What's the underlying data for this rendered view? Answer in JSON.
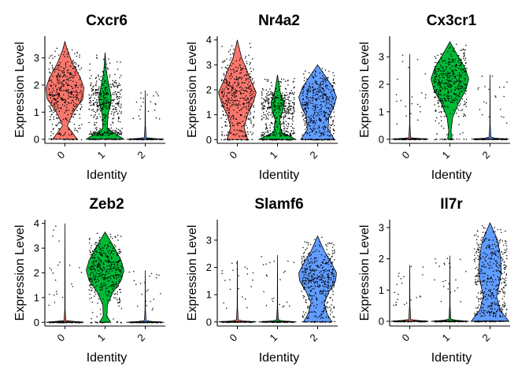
{
  "colors": {
    "0": "#F8766D",
    "1": "#00BA38",
    "2": "#619CFF",
    "axis": "#000000",
    "background": "#ffffff"
  },
  "chart_data": [
    {
      "type": "violin",
      "title": "Cxcr6",
      "xlabel": "Identity",
      "ylabel": "Expression Level",
      "categories": [
        "0",
        "1",
        "2"
      ],
      "ylim": [
        -0.15,
        3.8
      ],
      "yticks": [
        0,
        1,
        2,
        3
      ],
      "series": [
        {
          "category": "0",
          "max": 3.6,
          "median": 1.7,
          "shape": [
            [
              0,
              0.65
            ],
            [
              0.5,
              0.12
            ],
            [
              1.0,
              0.45
            ],
            [
              1.5,
              0.95
            ],
            [
              1.9,
              1.0
            ],
            [
              2.3,
              0.8
            ],
            [
              2.8,
              0.4
            ],
            [
              3.3,
              0.12
            ],
            [
              3.6,
              0.0
            ]
          ]
        },
        {
          "category": "1",
          "max": 3.2,
          "median": 1.5,
          "shape": [
            [
              0,
              1.0
            ],
            [
              0.4,
              0.12
            ],
            [
              0.9,
              0.15
            ],
            [
              1.3,
              0.3
            ],
            [
              1.6,
              0.32
            ],
            [
              2.0,
              0.2
            ],
            [
              2.5,
              0.07
            ],
            [
              3.2,
              0.0
            ]
          ]
        },
        {
          "category": "2",
          "max": 1.8,
          "median": 0,
          "shape": [
            [
              0,
              1.0
            ],
            [
              0.05,
              0.05
            ],
            [
              0.5,
              0.01
            ],
            [
              1.8,
              0.0
            ]
          ]
        }
      ]
    },
    {
      "type": "violin",
      "title": "Nr4a2",
      "xlabel": "Identity",
      "ylabel": "Expression Level",
      "categories": [
        "0",
        "1",
        "2"
      ],
      "ylim": [
        -0.15,
        4.15
      ],
      "yticks": [
        0,
        1,
        2,
        3,
        4
      ],
      "series": [
        {
          "category": "0",
          "max": 4.0,
          "median": 2.0,
          "shape": [
            [
              0,
              0.55
            ],
            [
              0.5,
              0.35
            ],
            [
              1.0,
              0.55
            ],
            [
              1.5,
              0.85
            ],
            [
              1.9,
              1.0
            ],
            [
              2.3,
              0.75
            ],
            [
              2.8,
              0.5
            ],
            [
              3.3,
              0.22
            ],
            [
              3.8,
              0.06
            ],
            [
              4.0,
              0.0
            ]
          ]
        },
        {
          "category": "1",
          "max": 2.6,
          "median": 1.4,
          "shape": [
            [
              0,
              1.0
            ],
            [
              0.3,
              0.2
            ],
            [
              0.8,
              0.12
            ],
            [
              1.2,
              0.3
            ],
            [
              1.5,
              0.35
            ],
            [
              1.9,
              0.15
            ],
            [
              2.6,
              0.0
            ]
          ]
        },
        {
          "category": "2",
          "max": 3.0,
          "median": 1.7,
          "shape": [
            [
              0,
              0.9
            ],
            [
              0.4,
              0.55
            ],
            [
              0.9,
              0.6
            ],
            [
              1.3,
              0.85
            ],
            [
              1.7,
              1.0
            ],
            [
              2.1,
              0.8
            ],
            [
              2.5,
              0.45
            ],
            [
              3.0,
              0.0
            ]
          ]
        }
      ]
    },
    {
      "type": "violin",
      "title": "Cx3cr1",
      "xlabel": "Identity",
      "ylabel": "Expression Level",
      "categories": [
        "0",
        "1",
        "2"
      ],
      "ylim": [
        -0.15,
        3.75
      ],
      "yticks": [
        0,
        1,
        2,
        3
      ],
      "series": [
        {
          "category": "0",
          "max": 3.1,
          "median": 0,
          "shape": [
            [
              0,
              1.0
            ],
            [
              0.05,
              0.05
            ],
            [
              0.5,
              0.01
            ],
            [
              3.1,
              0.0
            ]
          ]
        },
        {
          "category": "1",
          "max": 3.55,
          "median": 2.2,
          "shape": [
            [
              0,
              0.12
            ],
            [
              0.3,
              0.06
            ],
            [
              0.8,
              0.15
            ],
            [
              1.3,
              0.45
            ],
            [
              1.8,
              0.85
            ],
            [
              2.2,
              1.0
            ],
            [
              2.6,
              0.8
            ],
            [
              3.0,
              0.45
            ],
            [
              3.3,
              0.2
            ],
            [
              3.55,
              0.0
            ]
          ]
        },
        {
          "category": "2",
          "max": 2.35,
          "median": 0,
          "shape": [
            [
              0,
              1.0
            ],
            [
              0.05,
              0.05
            ],
            [
              0.5,
              0.01
            ],
            [
              2.35,
              0.0
            ]
          ]
        }
      ]
    },
    {
      "type": "violin",
      "title": "Zeb2",
      "xlabel": "Identity",
      "ylabel": "Expression Level",
      "categories": [
        "0",
        "1",
        "2"
      ],
      "ylim": [
        -0.15,
        4.15
      ],
      "yticks": [
        0,
        1,
        2,
        3,
        4
      ],
      "series": [
        {
          "category": "0",
          "max": 4.0,
          "median": 0,
          "shape": [
            [
              0,
              1.0
            ],
            [
              0.05,
              0.05
            ],
            [
              0.5,
              0.01
            ],
            [
              4.0,
              0.0
            ]
          ]
        },
        {
          "category": "1",
          "max": 3.65,
          "median": 2.1,
          "shape": [
            [
              0,
              0.3
            ],
            [
              0.25,
              0.1
            ],
            [
              0.7,
              0.12
            ],
            [
              1.2,
              0.4
            ],
            [
              1.7,
              0.85
            ],
            [
              2.1,
              1.0
            ],
            [
              2.5,
              0.85
            ],
            [
              3.0,
              0.5
            ],
            [
              3.4,
              0.2
            ],
            [
              3.65,
              0.0
            ]
          ]
        },
        {
          "category": "2",
          "max": 2.1,
          "median": 0,
          "shape": [
            [
              0,
              1.0
            ],
            [
              0.05,
              0.05
            ],
            [
              0.5,
              0.01
            ],
            [
              2.1,
              0.0
            ]
          ]
        }
      ]
    },
    {
      "type": "violin",
      "title": "Slamf6",
      "xlabel": "Identity",
      "ylabel": "Expression Level",
      "categories": [
        "0",
        "1",
        "2"
      ],
      "ylim": [
        -0.15,
        3.75
      ],
      "yticks": [
        0,
        1,
        2,
        3
      ],
      "series": [
        {
          "category": "0",
          "max": 2.25,
          "median": 0,
          "shape": [
            [
              0,
              1.0
            ],
            [
              0.05,
              0.05
            ],
            [
              0.5,
              0.01
            ],
            [
              2.25,
              0.0
            ]
          ]
        },
        {
          "category": "1",
          "max": 2.45,
          "median": 0,
          "shape": [
            [
              0,
              1.0
            ],
            [
              0.05,
              0.05
            ],
            [
              0.5,
              0.01
            ],
            [
              2.45,
              0.0
            ]
          ]
        },
        {
          "category": "2",
          "max": 3.15,
          "median": 1.6,
          "shape": [
            [
              0,
              0.75
            ],
            [
              0.3,
              0.5
            ],
            [
              0.7,
              0.35
            ],
            [
              1.1,
              0.6
            ],
            [
              1.5,
              0.95
            ],
            [
              1.8,
              1.0
            ],
            [
              2.2,
              0.7
            ],
            [
              2.6,
              0.35
            ],
            [
              3.15,
              0.0
            ]
          ]
        }
      ]
    },
    {
      "type": "violin",
      "title": "Il7r",
      "xlabel": "Identity",
      "ylabel": "Expression Level",
      "categories": [
        "0",
        "1",
        "2"
      ],
      "ylim": [
        -0.15,
        3.25
      ],
      "yticks": [
        0,
        1,
        2,
        3
      ],
      "series": [
        {
          "category": "0",
          "max": 1.8,
          "median": 0,
          "shape": [
            [
              0,
              1.0
            ],
            [
              0.05,
              0.05
            ],
            [
              0.5,
              0.01
            ],
            [
              1.8,
              0.0
            ]
          ]
        },
        {
          "category": "1",
          "max": 2.1,
          "median": 0,
          "shape": [
            [
              0,
              1.0
            ],
            [
              0.05,
              0.05
            ],
            [
              0.5,
              0.01
            ],
            [
              2.1,
              0.0
            ]
          ]
        },
        {
          "category": "2",
          "max": 3.15,
          "median": 1.5,
          "shape": [
            [
              0,
              1.0
            ],
            [
              0.35,
              0.55
            ],
            [
              0.8,
              0.35
            ],
            [
              1.2,
              0.5
            ],
            [
              1.6,
              0.6
            ],
            [
              2.1,
              0.55
            ],
            [
              2.6,
              0.4
            ],
            [
              3.15,
              0.0
            ]
          ]
        }
      ]
    }
  ]
}
